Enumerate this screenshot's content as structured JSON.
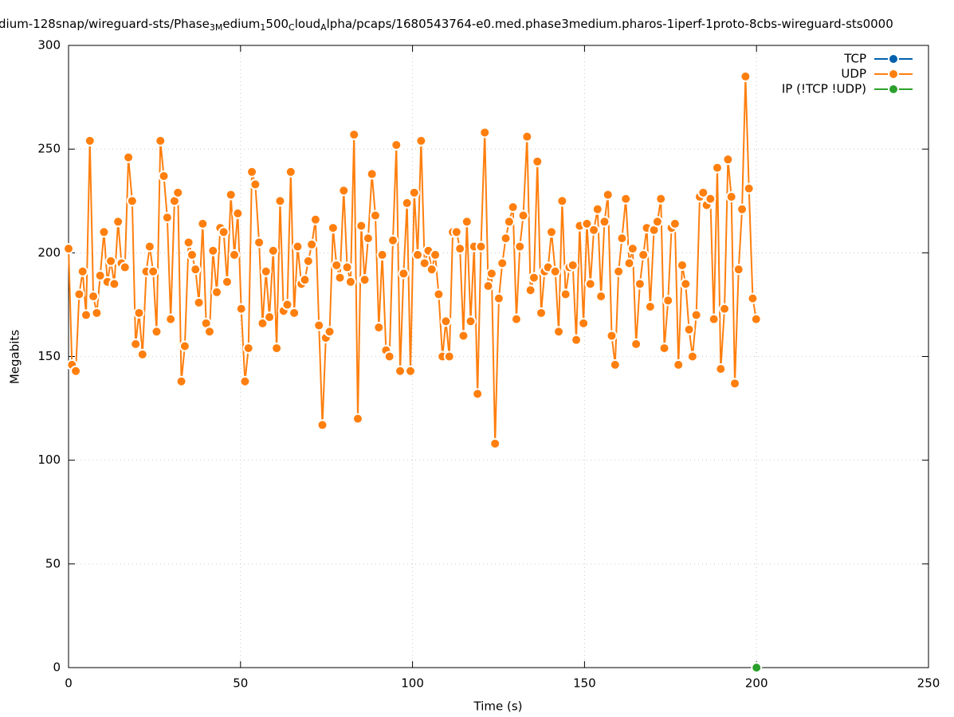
{
  "chart_data": {
    "type": "line",
    "title_parts": [
      {
        "text": "dium-128snap/wireguard-sts/Phase",
        "sub": false
      },
      {
        "text": "3M",
        "sub": true
      },
      {
        "text": "edium",
        "sub": false
      },
      {
        "text": "1",
        "sub": true
      },
      {
        "text": "500",
        "sub": false
      },
      {
        "text": "C",
        "sub": true
      },
      {
        "text": "loud",
        "sub": false
      },
      {
        "text": "A",
        "sub": true
      },
      {
        "text": "lpha/pcaps/1680543764-e0.med.phase3medium.pharos-1iperf-1proto-8cbs-wireguard-sts0000",
        "sub": false
      }
    ],
    "x_label": "Time (s)",
    "y_label": "Megabits",
    "xlim": [
      0,
      250
    ],
    "xticks": [
      0,
      50,
      100,
      150,
      200,
      250
    ],
    "ylim": [
      0,
      300
    ],
    "yticks": [
      0,
      50,
      100,
      150,
      200,
      250,
      300
    ],
    "grid": true,
    "legend": "top-right",
    "series": [
      {
        "name": "TCP",
        "color": "#0060ad",
        "x": [],
        "values": []
      },
      {
        "name": "UDP",
        "color": "#ff7f0e",
        "x": [
          0,
          1,
          2.1,
          3.1,
          4.1,
          5.1,
          6.2,
          7.2,
          8.2,
          9.2,
          10.3,
          11.3,
          12.3,
          13.3,
          14.4,
          15.4,
          16.4,
          17.4,
          18.5,
          19.5,
          20.5,
          21.5,
          22.6,
          23.6,
          24.6,
          25.6,
          26.7,
          27.7,
          28.7,
          29.7,
          30.8,
          31.8,
          32.8,
          33.8,
          34.9,
          35.9,
          36.9,
          37.9,
          39,
          40,
          41,
          42,
          43.1,
          44.1,
          45.1,
          46.1,
          47.2,
          48.2,
          49.2,
          50.2,
          51.3,
          52.3,
          53.3,
          54.3,
          55.4,
          56.4,
          57.4,
          58.4,
          59.5,
          60.5,
          61.5,
          62.5,
          63.6,
          64.6,
          65.6,
          66.6,
          67.7,
          68.7,
          69.7,
          70.7,
          71.8,
          72.8,
          73.8,
          74.8,
          75.9,
          76.9,
          77.9,
          78.9,
          80,
          81,
          82,
          83,
          84.1,
          85.1,
          86.1,
          87.1,
          88.2,
          89.2,
          90.2,
          91.2,
          92.3,
          93.3,
          94.3,
          95.3,
          96.4,
          97.4,
          98.4,
          99.4,
          100.5,
          101.5,
          102.5,
          103.5,
          104.6,
          105.6,
          106.6,
          107.6,
          108.7,
          109.7,
          110.7,
          111.7,
          112.8,
          113.8,
          114.8,
          115.8,
          116.9,
          117.9,
          118.9,
          119.9,
          121,
          122,
          123,
          124,
          125.1,
          126.1,
          127.1,
          128.1,
          129.2,
          130.2,
          131.2,
          132.2,
          133.3,
          134.3,
          135.3,
          136.3,
          137.4,
          138.4,
          139.4,
          140.4,
          141.5,
          142.5,
          143.5,
          144.5,
          145.6,
          146.6,
          147.6,
          148.6,
          149.7,
          150.7,
          151.7,
          152.7,
          153.8,
          154.8,
          155.8,
          156.8,
          157.9,
          158.9,
          159.9,
          160.9,
          162,
          163,
          164,
          165,
          166.1,
          167.1,
          168.1,
          169.1,
          170.2,
          171.2,
          172.2,
          173.2,
          174.3,
          175.3,
          176.3,
          177.3,
          178.4,
          179.4,
          180.4,
          181.4,
          182.5,
          183.5,
          184.5,
          185.5,
          186.6,
          187.6,
          188.6,
          189.6,
          190.7,
          191.7,
          192.7,
          193.7,
          194.8,
          195.8,
          196.8,
          197.8,
          198.9,
          199.9
        ],
        "values": [
          202,
          146,
          143,
          180,
          191,
          170,
          254,
          179,
          171,
          189,
          210,
          186,
          196,
          185,
          215,
          195,
          193,
          246,
          225,
          156,
          171,
          151,
          191,
          203,
          191,
          162,
          254,
          237,
          217,
          168,
          225,
          229,
          138,
          155,
          205,
          199,
          192,
          176,
          214,
          166,
          162,
          201,
          181,
          212,
          210,
          186,
          228,
          199,
          219,
          173,
          138,
          154,
          239,
          233,
          205,
          166,
          191,
          169,
          201,
          154,
          225,
          172,
          175,
          239,
          171,
          203,
          185,
          187,
          196,
          204,
          216,
          165,
          117,
          159,
          162,
          212,
          194,
          188,
          230,
          193,
          186,
          257,
          120,
          213,
          187,
          207,
          238,
          218,
          164,
          199,
          153,
          150,
          206,
          252,
          143,
          190,
          224,
          143,
          229,
          199,
          254,
          195,
          201,
          192,
          199,
          180,
          150,
          167,
          150,
          210,
          210,
          202,
          160,
          215,
          167,
          203,
          132,
          203,
          258,
          184,
          190,
          108,
          178,
          195,
          207,
          215,
          222,
          168,
          203,
          218,
          256,
          182,
          188,
          244,
          171,
          191,
          193,
          210,
          191,
          162,
          225,
          180,
          193,
          194,
          158,
          213,
          166,
          214,
          185,
          211,
          221,
          179,
          215,
          228,
          160,
          146,
          191,
          207,
          226,
          195,
          202,
          156,
          185,
          199,
          212,
          174,
          211,
          215,
          226,
          154,
          177,
          212,
          214,
          146,
          194,
          185,
          163,
          150,
          170,
          227,
          229,
          223,
          226,
          168,
          241,
          144,
          173,
          245,
          227,
          137,
          192,
          221,
          285,
          231,
          178,
          168
        ]
      },
      {
        "name": "IP (!TCP  !UDP)",
        "color": "#2ca02c",
        "x": [
          200
        ],
        "values": [
          0
        ]
      }
    ]
  }
}
